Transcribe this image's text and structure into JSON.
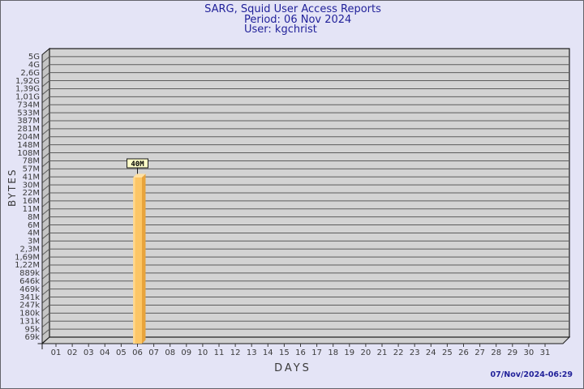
{
  "header": {
    "title_line1": "SARG, Squid User Access Reports",
    "title_line2": "Period: 06 Nov 2024",
    "title_line3": "User: kgchrist"
  },
  "footer": {
    "generated_at": "07/Nov/2024-06:29"
  },
  "chart_data": {
    "type": "bar",
    "title": "SARG, Squid User Access Reports",
    "subtitle": "Period: 06 Nov 2024",
    "user": "User: kgchrist",
    "xlabel": "DAYS",
    "ylabel": "BYTES",
    "y_scale": "logarithmic",
    "grid": true,
    "y_tick_labels": [
      "5G",
      "4G",
      "2,6G",
      "1,92G",
      "1,39G",
      "1,01G",
      "734M",
      "533M",
      "387M",
      "281M",
      "204M",
      "148M",
      "108M",
      "78M",
      "57M",
      "41M",
      "30M",
      "22M",
      "16M",
      "11M",
      "8M",
      "6M",
      "4M",
      "3M",
      "2,3M",
      "1,69M",
      "1,22M",
      "889k",
      "646k",
      "469k",
      "341k",
      "247k",
      "180k",
      "131k",
      "95k",
      "69k"
    ],
    "x_tick_labels": [
      "01",
      "02",
      "03",
      "04",
      "05",
      "06",
      "07",
      "08",
      "09",
      "10",
      "11",
      "12",
      "13",
      "14",
      "15",
      "16",
      "17",
      "18",
      "19",
      "20",
      "21",
      "22",
      "23",
      "24",
      "25",
      "26",
      "27",
      "28",
      "29",
      "30",
      "31"
    ],
    "series": [
      {
        "name": "kgchrist",
        "points": [
          {
            "day": "06",
            "value_label": "40M",
            "value_bytes": 40000000
          }
        ]
      }
    ],
    "colors": {
      "page_bg": "#e4e4f6",
      "panel_bg": "#d3d3d3",
      "wall_bg": "#c4c4c4",
      "floor_bg": "#d0d0d0",
      "grid_line": "#5c5c5c",
      "frame": "#1a1a1a",
      "bar_front": "#fcc666",
      "bar_highlight": "#ffd88f",
      "bar_side": "#e8a43c",
      "bar_top": "#ffe1a4",
      "value_box_bg": "#ffffc8",
      "title_color": "#22229a",
      "tick_color": "#3a3a3a"
    }
  }
}
